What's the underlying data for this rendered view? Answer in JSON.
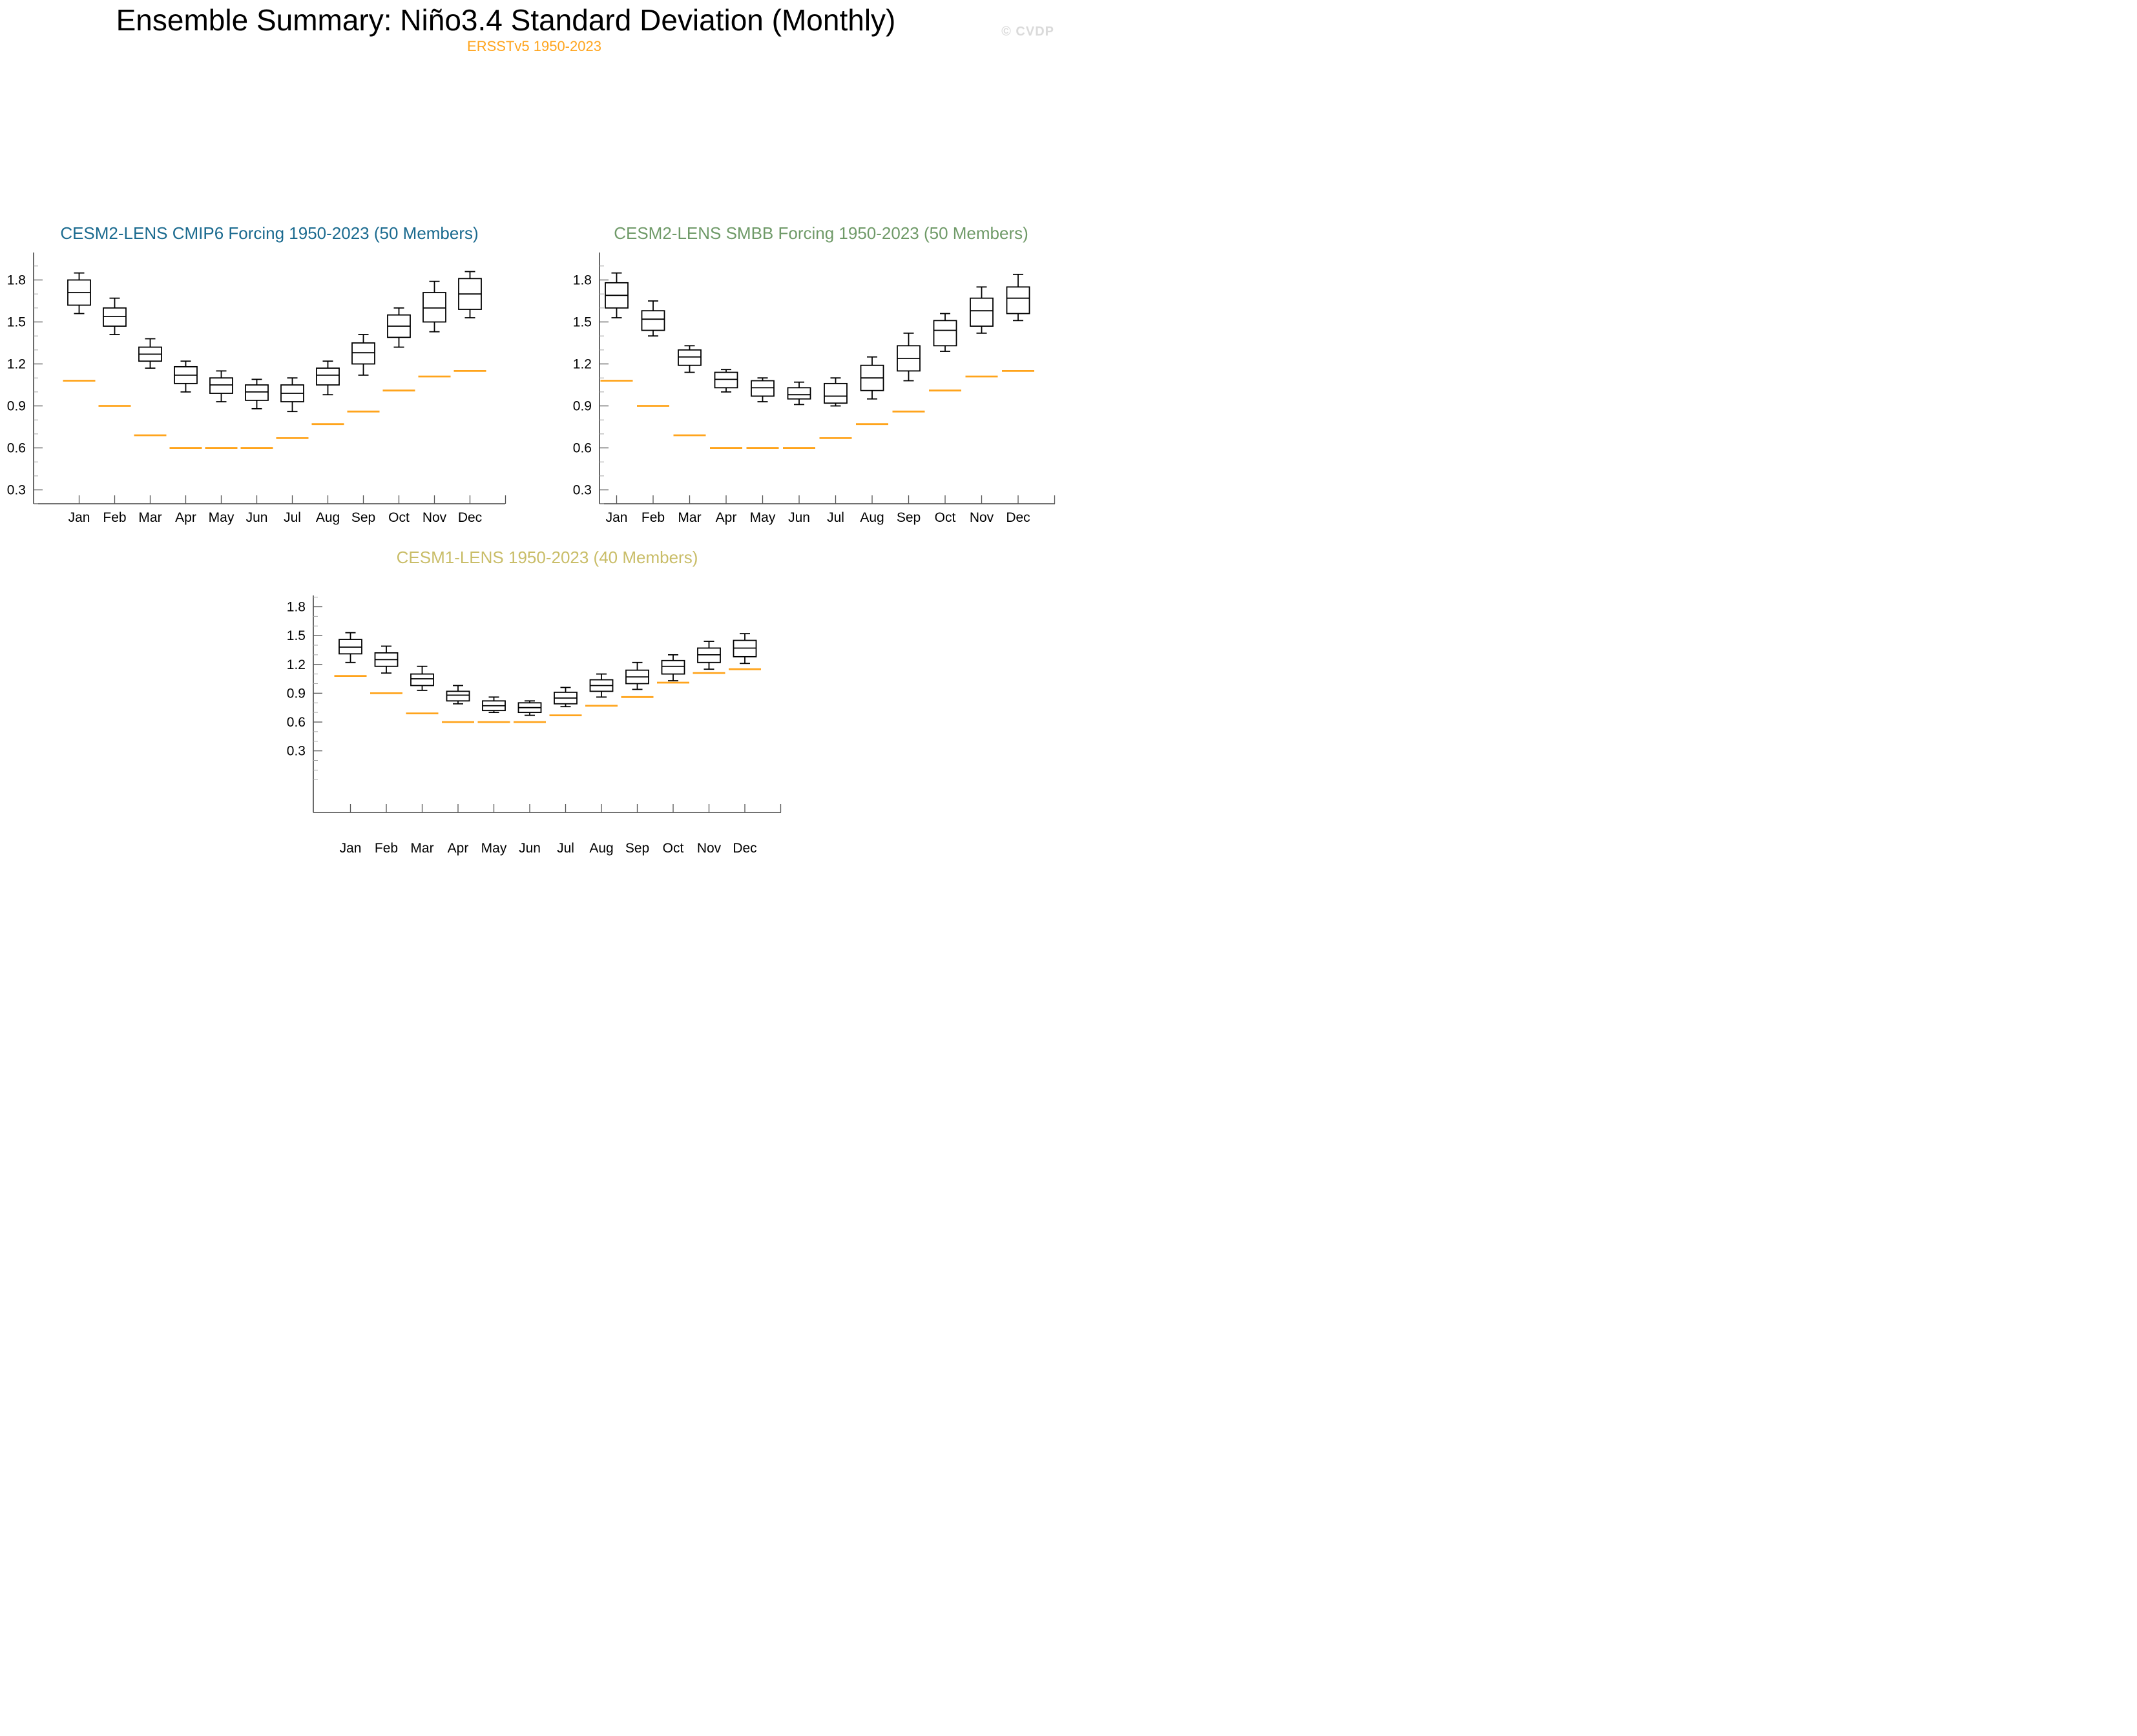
{
  "header": {
    "title": "Ensemble Summary: Niño3.4 Standard Deviation (Monthly)",
    "subtitle": "ERSSTv5 1950-2023",
    "watermark": "© CVDP"
  },
  "colors": {
    "observation": "#FFA41C",
    "box_stroke": "#000000",
    "axis": "#444444",
    "major_tick": "#555555",
    "minor_tick": "#a6a6a6",
    "tick_label": "#000000",
    "watermark": "#DADADA"
  },
  "months": [
    "Jan",
    "Feb",
    "Mar",
    "Apr",
    "May",
    "Jun",
    "Jul",
    "Aug",
    "Sep",
    "Oct",
    "Nov",
    "Dec"
  ],
  "y_axis": {
    "tick_labels": [
      "0.3",
      "0.6",
      "0.9",
      "1.2",
      "1.5",
      "1.8"
    ],
    "tick_values": [
      0.3,
      0.6,
      0.9,
      1.2,
      1.5,
      1.8
    ],
    "minor_step": 0.1
  },
  "chart_data": [
    {
      "id": "cesm2_lens_cmip6",
      "type": "boxplot",
      "title": "CESM2-LENS CMIP6 Forcing 1950-2023 (50 Members)",
      "title_color": "#1A6A8F",
      "categories": [
        "Jan",
        "Feb",
        "Mar",
        "Apr",
        "May",
        "Jun",
        "Jul",
        "Aug",
        "Sep",
        "Oct",
        "Nov",
        "Dec"
      ],
      "ylim": [
        0.2,
        2.0
      ],
      "grid": false,
      "box_stats": {
        "whisker_low": [
          1.56,
          1.41,
          1.17,
          1.0,
          0.93,
          0.88,
          0.86,
          0.98,
          1.12,
          1.32,
          1.43,
          1.53
        ],
        "q1": [
          1.62,
          1.47,
          1.22,
          1.06,
          0.99,
          0.94,
          0.93,
          1.05,
          1.2,
          1.39,
          1.5,
          1.59
        ],
        "median": [
          1.71,
          1.54,
          1.27,
          1.12,
          1.05,
          1.0,
          0.99,
          1.12,
          1.28,
          1.47,
          1.6,
          1.7
        ],
        "q3": [
          1.8,
          1.6,
          1.32,
          1.18,
          1.1,
          1.05,
          1.05,
          1.17,
          1.35,
          1.55,
          1.71,
          1.81
        ],
        "whisker_high": [
          1.85,
          1.67,
          1.38,
          1.22,
          1.15,
          1.09,
          1.1,
          1.22,
          1.41,
          1.6,
          1.79,
          1.86
        ]
      },
      "observed": {
        "label": "ERSSTv5 1950-2023",
        "color": "#FFA41C",
        "values": [
          1.08,
          0.9,
          0.69,
          0.6,
          0.6,
          0.6,
          0.67,
          0.77,
          0.86,
          1.01,
          1.11,
          1.15
        ]
      }
    },
    {
      "id": "cesm2_lens_smbb",
      "type": "boxplot",
      "title": "CESM2-LENS SMBB Forcing 1950-2023 (50 Members)",
      "title_color": "#6F9A68",
      "categories": [
        "Jan",
        "Feb",
        "Mar",
        "Apr",
        "May",
        "Jun",
        "Jul",
        "Aug",
        "Sep",
        "Oct",
        "Nov",
        "Dec"
      ],
      "ylim": [
        0.2,
        2.0
      ],
      "grid": false,
      "box_stats": {
        "whisker_low": [
          1.53,
          1.4,
          1.14,
          1.0,
          0.93,
          0.91,
          0.9,
          0.95,
          1.08,
          1.29,
          1.42,
          1.51
        ],
        "q1": [
          1.6,
          1.44,
          1.19,
          1.03,
          0.97,
          0.95,
          0.92,
          1.01,
          1.15,
          1.33,
          1.47,
          1.56
        ],
        "median": [
          1.69,
          1.52,
          1.25,
          1.09,
          1.03,
          0.98,
          0.97,
          1.1,
          1.24,
          1.44,
          1.58,
          1.67
        ],
        "q3": [
          1.78,
          1.58,
          1.3,
          1.14,
          1.08,
          1.03,
          1.06,
          1.19,
          1.33,
          1.51,
          1.67,
          1.75
        ],
        "whisker_high": [
          1.85,
          1.65,
          1.33,
          1.16,
          1.1,
          1.07,
          1.1,
          1.25,
          1.42,
          1.56,
          1.75,
          1.84
        ]
      },
      "observed": {
        "label": "ERSSTv5 1950-2023",
        "color": "#FFA41C",
        "values": [
          1.08,
          0.9,
          0.69,
          0.6,
          0.6,
          0.6,
          0.67,
          0.77,
          0.86,
          1.01,
          1.11,
          1.15
        ]
      }
    },
    {
      "id": "cesm1_lens",
      "type": "boxplot",
      "title": "CESM1-LENS 1950-2023 (40 Members)",
      "title_color": "#C9BD68",
      "categories": [
        "Jan",
        "Feb",
        "Mar",
        "Apr",
        "May",
        "Jun",
        "Jul",
        "Aug",
        "Sep",
        "Oct",
        "Nov",
        "Dec"
      ],
      "ylim": [
        -0.3,
        1.95
      ],
      "grid": false,
      "box_stats": {
        "whisker_low": [
          1.22,
          1.11,
          0.93,
          0.79,
          0.7,
          0.67,
          0.76,
          0.86,
          0.94,
          1.03,
          1.15,
          1.21
        ],
        "q1": [
          1.31,
          1.18,
          0.98,
          0.82,
          0.72,
          0.7,
          0.79,
          0.92,
          1.0,
          1.1,
          1.22,
          1.28
        ],
        "median": [
          1.38,
          1.25,
          1.05,
          0.88,
          0.77,
          0.75,
          0.85,
          0.98,
          1.07,
          1.18,
          1.3,
          1.37
        ],
        "q3": [
          1.46,
          1.32,
          1.1,
          0.92,
          0.82,
          0.8,
          0.91,
          1.04,
          1.14,
          1.24,
          1.37,
          1.45
        ],
        "whisker_high": [
          1.53,
          1.39,
          1.18,
          0.98,
          0.86,
          0.82,
          0.96,
          1.1,
          1.22,
          1.3,
          1.44,
          1.52
        ]
      },
      "observed": {
        "label": "ERSSTv5 1950-2023",
        "color": "#FFA41C",
        "values": [
          1.08,
          0.9,
          0.69,
          0.6,
          0.6,
          0.6,
          0.67,
          0.77,
          0.86,
          1.01,
          1.11,
          1.15
        ]
      }
    }
  ]
}
